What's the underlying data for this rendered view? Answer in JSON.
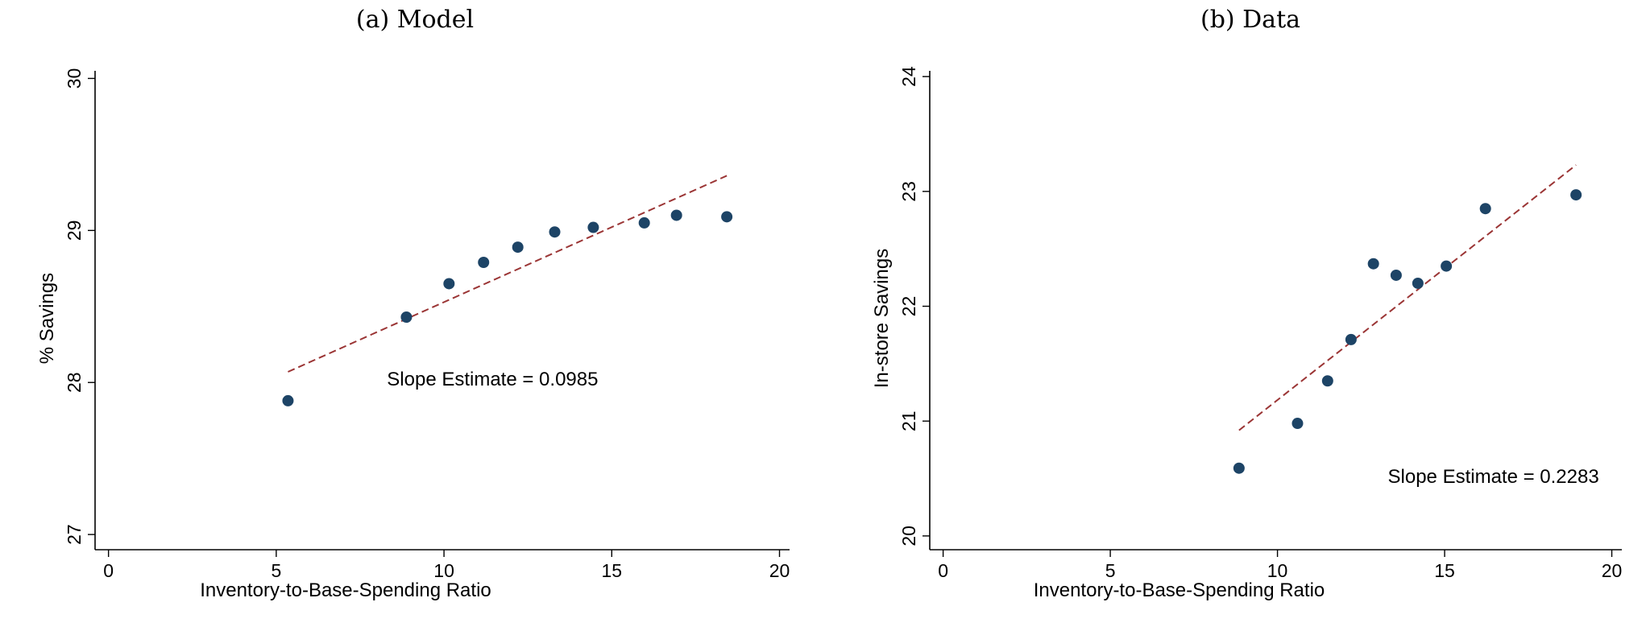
{
  "chart_data": [
    {
      "type": "scatter",
      "title": "(a) Model",
      "xlabel": "Inventory-to-Base-Spending Ratio",
      "ylabel": "% Savings",
      "xlim": [
        -0.4,
        20.3
      ],
      "ylim": [
        26.9,
        30.05
      ],
      "xticks": [
        0,
        5,
        10,
        15,
        20
      ],
      "yticks": [
        27,
        28,
        29,
        30
      ],
      "grid": false,
      "colors": {
        "points": "#1d4466",
        "fit": "#9b3535"
      },
      "points": [
        {
          "x": 5.35,
          "y": 27.88
        },
        {
          "x": 8.88,
          "y": 28.43
        },
        {
          "x": 10.15,
          "y": 28.65
        },
        {
          "x": 11.18,
          "y": 28.79
        },
        {
          "x": 12.2,
          "y": 28.89
        },
        {
          "x": 13.3,
          "y": 28.99
        },
        {
          "x": 14.45,
          "y": 29.02
        },
        {
          "x": 15.97,
          "y": 29.05
        },
        {
          "x": 16.93,
          "y": 29.1
        },
        {
          "x": 18.43,
          "y": 29.09
        }
      ],
      "fit_line": {
        "x": [
          5.35,
          18.43
        ],
        "y": [
          28.07,
          29.36
        ],
        "style": "dashed"
      },
      "annotation": {
        "text": "Slope Estimate = 0.0985",
        "x": 8.3,
        "y": 27.98
      }
    },
    {
      "type": "scatter",
      "title": "(b) Data",
      "xlabel": "Inventory-to-Base-Spending Ratio",
      "ylabel": "In-store Savings",
      "xlim": [
        -0.4,
        20.3
      ],
      "ylim": [
        19.88,
        24.05
      ],
      "xticks": [
        0,
        5,
        10,
        15,
        20
      ],
      "yticks": [
        20,
        21,
        22,
        23,
        24
      ],
      "grid": false,
      "colors": {
        "points": "#1d4466",
        "fit": "#9b3535"
      },
      "points": [
        {
          "x": 8.85,
          "y": 20.59
        },
        {
          "x": 10.6,
          "y": 20.98
        },
        {
          "x": 11.5,
          "y": 21.35
        },
        {
          "x": 12.2,
          "y": 21.71
        },
        {
          "x": 12.87,
          "y": 22.37
        },
        {
          "x": 13.55,
          "y": 22.27
        },
        {
          "x": 14.2,
          "y": 22.2
        },
        {
          "x": 15.05,
          "y": 22.35
        },
        {
          "x": 16.22,
          "y": 22.85
        },
        {
          "x": 18.93,
          "y": 22.97
        }
      ],
      "fit_line": {
        "x": [
          8.85,
          18.93
        ],
        "y": [
          20.92,
          23.23
        ],
        "style": "dashed"
      },
      "annotation": {
        "text": "Slope Estimate = 0.2283",
        "x": 13.3,
        "y": 20.46
      }
    }
  ]
}
